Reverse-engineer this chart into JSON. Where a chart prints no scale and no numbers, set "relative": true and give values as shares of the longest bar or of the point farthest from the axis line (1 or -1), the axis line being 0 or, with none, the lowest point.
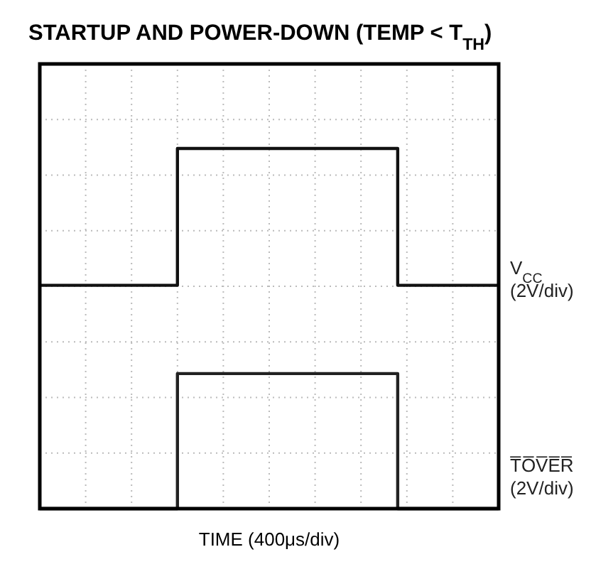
{
  "chart_data": {
    "type": "step",
    "title": "STARTUP AND POWER-DOWN (TEMP < T$_{TH}$)",
    "xlabel": "TIME (400μs/div)",
    "relative": true,
    "categories": [
      null,
      null,
      null,
      null,
      null,
      null,
      null,
      null,
      null,
      null,
      null,
      null,
      null,
      null,
      null,
      null,
      null,
      null,
      null,
      null,
      null,
      null,
      null,
      null,
      null,
      null,
      null,
      null,
      null,
      null,
      null,
      null,
      null,
      null,
      null,
      null,
      null,
      null,
      null,
      null,
      null,
      null,
      null,
      null,
      null,
      null,
      null,
      null,
      null,
      null,
      null
    ],
    "grid": true,
    "line_style": "solid",
    "marker": "none",
    "series": [
      {
        "name": "V$_{CC}$ (2V/div)",
        "color": "#111111",
        "values": [
          0.62,
          0.62,
          0.62,
          0.62,
          0.62,
          0.62,
          0.62,
          0.62,
          0.62,
          0.62,
          0.62,
          0.62,
          0.62,
          0.62,
          0.62,
          1,
          1,
          1,
          1,
          1,
          1,
          1,
          1,
          1,
          1,
          1,
          1,
          1,
          1,
          1,
          1,
          1,
          1,
          1,
          1,
          1,
          1,
          1,
          1,
          0.62,
          0.62,
          0.62,
          0.62,
          0.62,
          0.62,
          0.62,
          0.62,
          0.62,
          0.62,
          0.62,
          0.62
        ]
      },
      {
        "name": "T̅O̅V̅E̅R̅ (2V/div)",
        "color": "#222222",
        "values": [
          0,
          0,
          0,
          0,
          0,
          0,
          0,
          0,
          0,
          0,
          0,
          0,
          0,
          0,
          0,
          0.375,
          0.375,
          0.375,
          0.375,
          0.375,
          0.375,
          0.375,
          0.375,
          0.375,
          0.375,
          0.375,
          0.375,
          0.375,
          0.375,
          0.375,
          0.375,
          0.375,
          0.375,
          0.375,
          0.375,
          0.375,
          0.375,
          0.375,
          0.375,
          0,
          0,
          0,
          0,
          0,
          0,
          0,
          0,
          0,
          0,
          0,
          0
        ]
      }
    ]
  }
}
